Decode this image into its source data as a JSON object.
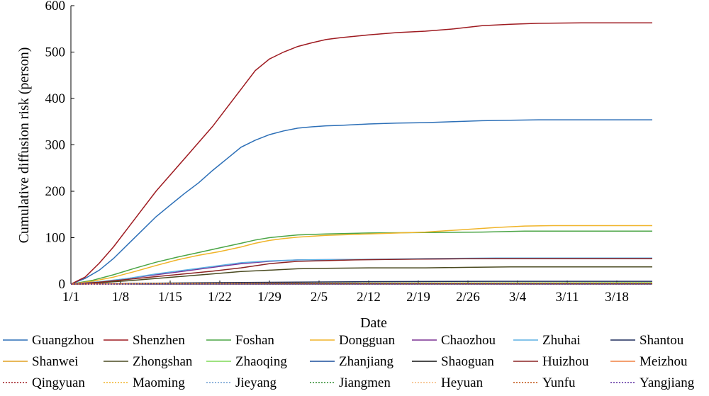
{
  "chart_data": {
    "type": "line",
    "title": "",
    "xlabel": "Date",
    "ylabel": "Cumulative diffusion risk (person)",
    "ylim": [
      0,
      600
    ],
    "yticks": [
      "0",
      "100",
      "200",
      "300",
      "400",
      "500",
      "600"
    ],
    "xlim": [
      0,
      82
    ],
    "xticks": [
      {
        "label": "1/1",
        "day": 0
      },
      {
        "label": "1/8",
        "day": 7
      },
      {
        "label": "1/15",
        "day": 14
      },
      {
        "label": "1/22",
        "day": 21
      },
      {
        "label": "1/29",
        "day": 28
      },
      {
        "label": "2/5",
        "day": 35
      },
      {
        "label": "2/12",
        "day": 42
      },
      {
        "label": "2/19",
        "day": 49
      },
      {
        "label": "2/26",
        "day": 56
      },
      {
        "label": "3/4",
        "day": 63
      },
      {
        "label": "3/11",
        "day": 70
      },
      {
        "label": "3/18",
        "day": 77
      }
    ],
    "grid": false,
    "legend_position": "bottom",
    "series": [
      {
        "name": "Guangzhou",
        "color": "#2c6fb7",
        "dash": "solid",
        "points": [
          [
            0,
            0
          ],
          [
            2,
            12
          ],
          [
            4,
            30
          ],
          [
            6,
            55
          ],
          [
            8,
            85
          ],
          [
            10,
            115
          ],
          [
            12,
            145
          ],
          [
            14,
            170
          ],
          [
            16,
            195
          ],
          [
            18,
            218
          ],
          [
            20,
            245
          ],
          [
            22,
            270
          ],
          [
            24,
            295
          ],
          [
            26,
            310
          ],
          [
            28,
            322
          ],
          [
            30,
            330
          ],
          [
            32,
            336
          ],
          [
            34,
            339
          ],
          [
            36,
            341
          ],
          [
            38,
            342
          ],
          [
            42,
            345
          ],
          [
            46,
            347
          ],
          [
            50,
            348
          ],
          [
            54,
            350
          ],
          [
            58,
            352
          ],
          [
            62,
            353
          ],
          [
            66,
            354
          ],
          [
            72,
            354
          ],
          [
            82,
            354
          ]
        ]
      },
      {
        "name": "Shenzhen",
        "color": "#9e1a20",
        "dash": "solid",
        "points": [
          [
            0,
            0
          ],
          [
            2,
            15
          ],
          [
            4,
            45
          ],
          [
            6,
            80
          ],
          [
            8,
            120
          ],
          [
            10,
            160
          ],
          [
            12,
            200
          ],
          [
            14,
            235
          ],
          [
            16,
            270
          ],
          [
            18,
            305
          ],
          [
            20,
            340
          ],
          [
            22,
            380
          ],
          [
            24,
            420
          ],
          [
            26,
            460
          ],
          [
            28,
            485
          ],
          [
            30,
            500
          ],
          [
            32,
            512
          ],
          [
            34,
            520
          ],
          [
            36,
            527
          ],
          [
            38,
            531
          ],
          [
            40,
            534
          ],
          [
            42,
            537
          ],
          [
            46,
            542
          ],
          [
            50,
            545
          ],
          [
            54,
            550
          ],
          [
            58,
            557
          ],
          [
            62,
            560
          ],
          [
            66,
            562
          ],
          [
            72,
            563
          ],
          [
            82,
            563
          ]
        ]
      },
      {
        "name": "Foshan",
        "color": "#4ba546",
        "dash": "solid",
        "points": [
          [
            0,
            0
          ],
          [
            3,
            8
          ],
          [
            6,
            20
          ],
          [
            9,
            34
          ],
          [
            12,
            47
          ],
          [
            15,
            58
          ],
          [
            18,
            68
          ],
          [
            21,
            78
          ],
          [
            24,
            88
          ],
          [
            26,
            95
          ],
          [
            28,
            100
          ],
          [
            30,
            103
          ],
          [
            32,
            106
          ],
          [
            36,
            108
          ],
          [
            42,
            110
          ],
          [
            50,
            111
          ],
          [
            58,
            112
          ],
          [
            64,
            114
          ],
          [
            82,
            114
          ]
        ]
      },
      {
        "name": "Dongguan",
        "color": "#f0b429",
        "dash": "solid",
        "points": [
          [
            0,
            0
          ],
          [
            3,
            6
          ],
          [
            6,
            15
          ],
          [
            9,
            27
          ],
          [
            12,
            40
          ],
          [
            15,
            52
          ],
          [
            18,
            62
          ],
          [
            21,
            70
          ],
          [
            24,
            80
          ],
          [
            26,
            88
          ],
          [
            28,
            94
          ],
          [
            30,
            98
          ],
          [
            32,
            101
          ],
          [
            36,
            105
          ],
          [
            42,
            108
          ],
          [
            50,
            112
          ],
          [
            56,
            118
          ],
          [
            60,
            122
          ],
          [
            64,
            125
          ],
          [
            68,
            126
          ],
          [
            82,
            126
          ]
        ]
      },
      {
        "name": "Chaozhou",
        "color": "#7b3294",
        "dash": "solid",
        "points": [
          [
            0,
            0
          ],
          [
            4,
            4
          ],
          [
            8,
            12
          ],
          [
            12,
            20
          ],
          [
            16,
            28
          ],
          [
            20,
            36
          ],
          [
            24,
            44
          ],
          [
            28,
            49
          ],
          [
            32,
            52
          ],
          [
            40,
            53
          ],
          [
            50,
            54
          ],
          [
            58,
            55
          ],
          [
            82,
            55
          ]
        ]
      },
      {
        "name": "Zhuhai",
        "color": "#5bb0e3",
        "dash": "solid",
        "points": [
          [
            0,
            0
          ],
          [
            4,
            5
          ],
          [
            8,
            12
          ],
          [
            12,
            22
          ],
          [
            16,
            30
          ],
          [
            20,
            38
          ],
          [
            24,
            46
          ],
          [
            28,
            50
          ],
          [
            32,
            52
          ],
          [
            40,
            53
          ],
          [
            50,
            55
          ],
          [
            60,
            56
          ],
          [
            82,
            56
          ]
        ]
      },
      {
        "name": "Shantou",
        "color": "#1f2d5c",
        "dash": "solid",
        "points": [
          [
            0,
            0
          ],
          [
            6,
            1
          ],
          [
            12,
            2
          ],
          [
            20,
            3
          ],
          [
            30,
            4
          ],
          [
            40,
            5
          ],
          [
            60,
            6
          ],
          [
            82,
            6
          ]
        ]
      },
      {
        "name": "Shanwei",
        "color": "#e0a020",
        "dash": "solid",
        "points": [
          [
            0,
            0
          ],
          [
            10,
            1
          ],
          [
            30,
            2
          ],
          [
            82,
            2
          ]
        ]
      },
      {
        "name": "Zhongshan",
        "color": "#4a4a20",
        "dash": "solid",
        "points": [
          [
            0,
            0
          ],
          [
            4,
            3
          ],
          [
            8,
            7
          ],
          [
            12,
            12
          ],
          [
            16,
            17
          ],
          [
            20,
            22
          ],
          [
            24,
            27
          ],
          [
            28,
            30
          ],
          [
            32,
            33
          ],
          [
            36,
            34
          ],
          [
            42,
            35
          ],
          [
            50,
            35
          ],
          [
            56,
            36
          ],
          [
            62,
            37
          ],
          [
            82,
            37
          ]
        ]
      },
      {
        "name": "Zhaoqing",
        "color": "#7ed957",
        "dash": "solid",
        "points": [
          [
            0,
            0
          ],
          [
            10,
            1
          ],
          [
            30,
            2
          ],
          [
            82,
            3
          ]
        ]
      },
      {
        "name": "Zhanjiang",
        "color": "#1a4f9c",
        "dash": "solid",
        "points": [
          [
            0,
            0
          ],
          [
            10,
            1
          ],
          [
            30,
            2
          ],
          [
            82,
            2
          ]
        ]
      },
      {
        "name": "Shaoguan",
        "color": "#111111",
        "dash": "solid",
        "points": [
          [
            0,
            0
          ],
          [
            10,
            1
          ],
          [
            30,
            2
          ],
          [
            82,
            2
          ]
        ]
      },
      {
        "name": "Huizhou",
        "color": "#8b2323",
        "dash": "solid",
        "points": [
          [
            0,
            0
          ],
          [
            4,
            4
          ],
          [
            8,
            10
          ],
          [
            12,
            16
          ],
          [
            16,
            22
          ],
          [
            20,
            28
          ],
          [
            24,
            35
          ],
          [
            28,
            44
          ],
          [
            32,
            49
          ],
          [
            40,
            52
          ],
          [
            50,
            54
          ],
          [
            60,
            55
          ],
          [
            82,
            55
          ]
        ]
      },
      {
        "name": "Meizhou",
        "color": "#f08040",
        "dash": "solid",
        "points": [
          [
            0,
            0
          ],
          [
            10,
            1
          ],
          [
            30,
            2
          ],
          [
            82,
            2
          ]
        ]
      },
      {
        "name": "Qingyuan",
        "color": "#9e1a20",
        "dash": "dot",
        "points": [
          [
            0,
            0
          ],
          [
            10,
            1
          ],
          [
            30,
            1
          ],
          [
            82,
            1
          ]
        ]
      },
      {
        "name": "Maoming",
        "color": "#f0b429",
        "dash": "dot",
        "points": [
          [
            0,
            0
          ],
          [
            10,
            1
          ],
          [
            30,
            1
          ],
          [
            82,
            1
          ]
        ]
      },
      {
        "name": "Jieyang",
        "color": "#6b9bd1",
        "dash": "dot",
        "points": [
          [
            0,
            0
          ],
          [
            10,
            1
          ],
          [
            30,
            1
          ],
          [
            82,
            1
          ]
        ]
      },
      {
        "name": "Jiangmen",
        "color": "#2e8b2e",
        "dash": "dot",
        "points": [
          [
            0,
            0
          ],
          [
            10,
            1
          ],
          [
            30,
            1
          ],
          [
            82,
            1
          ]
        ]
      },
      {
        "name": "Heyuan",
        "color": "#f5b97a",
        "dash": "dot",
        "points": [
          [
            0,
            0
          ],
          [
            10,
            0
          ],
          [
            82,
            0
          ]
        ]
      },
      {
        "name": "Yunfu",
        "color": "#c05010",
        "dash": "dot",
        "points": [
          [
            0,
            0
          ],
          [
            10,
            0
          ],
          [
            82,
            0
          ]
        ]
      },
      {
        "name": "Yangjiang",
        "color": "#5a2da0",
        "dash": "dot",
        "points": [
          [
            0,
            0
          ],
          [
            10,
            0
          ],
          [
            82,
            0
          ]
        ]
      }
    ]
  }
}
